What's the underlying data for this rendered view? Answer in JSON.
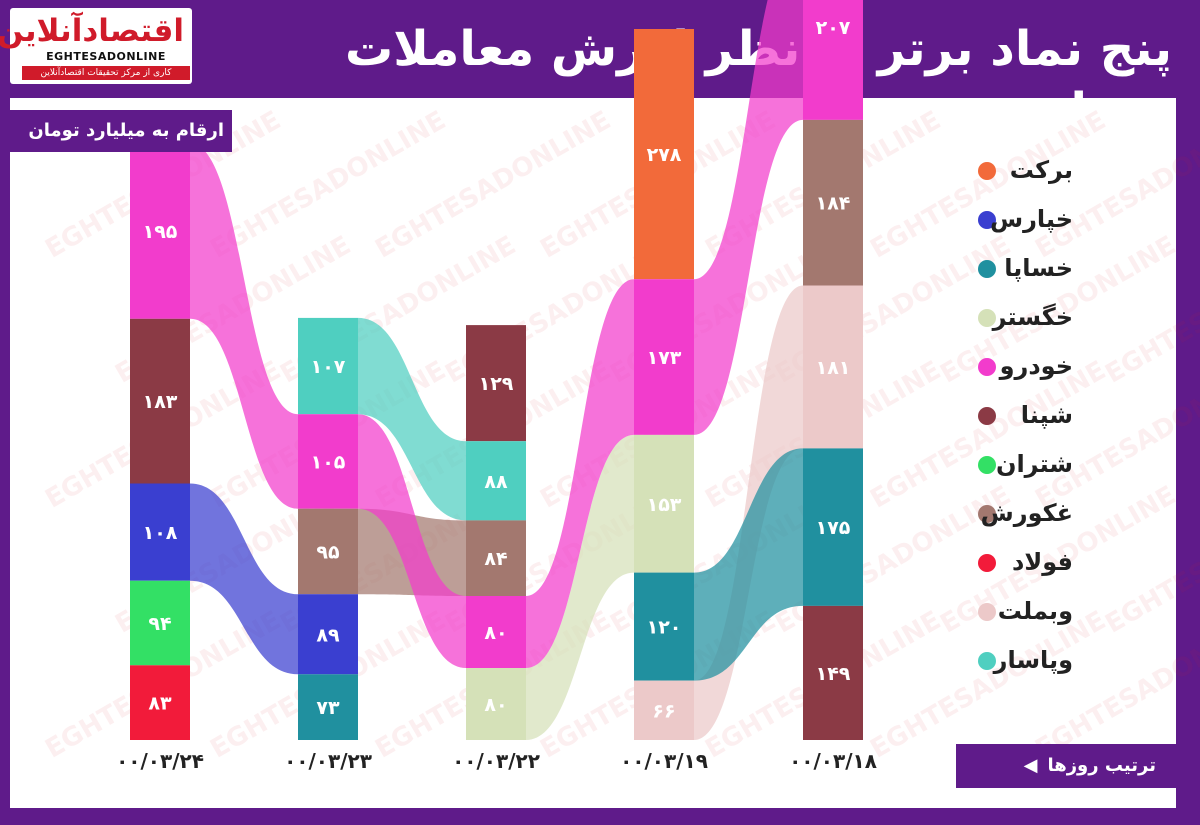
{
  "header": {
    "title": "پنج نماد برتر از نظر ارزش معاملات روزانه",
    "units_note": "ارقام به میلیارد تومان",
    "order_note": "ترتیب روزها"
  },
  "logo": {
    "name_fa": "اقتصادآنلاین",
    "name_en": "EGHTESADONLINE",
    "tagline": "کاری از مرکز تحقیقات اقتصادآنلاین"
  },
  "legend": [
    {
      "label": "برکت",
      "color": "#f26a3a"
    },
    {
      "label": "خپارس",
      "color": "#3a3fd0"
    },
    {
      "label": "خساپا",
      "color": "#20909f"
    },
    {
      "label": "خگستر",
      "color": "#d5e1b8"
    },
    {
      "label": "خودرو",
      "color": "#f23ccc"
    },
    {
      "label": "شپنا",
      "color": "#8b3a45"
    },
    {
      "label": "شتران",
      "color": "#33e065"
    },
    {
      "label": "غکورش",
      "color": "#a3786f"
    },
    {
      "label": "فولاد",
      "color": "#f21b3a"
    },
    {
      "label": "وبملت",
      "color": "#ecc9c9"
    },
    {
      "label": "وپاسار",
      "color": "#4fcfc0"
    }
  ],
  "chart_data": {
    "type": "bar",
    "subtype": "ranked stacked columns with flows",
    "unit": "ارقام به میلیارد تومان",
    "categories": [
      "۰۰/۰۳/۲۴",
      "۰۰/۰۳/۲۳",
      "۰۰/۰۳/۲۲",
      "۰۰/۰۳/۱۹",
      "۰۰/۰۳/۱۸"
    ],
    "days": [
      {
        "date": "۰۰/۰۳/۲۴",
        "stack": [
          {
            "symbol": "خودرو",
            "value": 195,
            "label": "۱۹۵"
          },
          {
            "symbol": "شپنا",
            "value": 183,
            "label": "۱۸۳"
          },
          {
            "symbol": "خپارس",
            "value": 108,
            "label": "۱۰۸"
          },
          {
            "symbol": "شتران",
            "value": 94,
            "label": "۹۴"
          },
          {
            "symbol": "فولاد",
            "value": 83,
            "label": "۸۳"
          }
        ]
      },
      {
        "date": "۰۰/۰۳/۲۳",
        "stack": [
          {
            "symbol": "وپاسار",
            "value": 107,
            "label": "۱۰۷"
          },
          {
            "symbol": "خودرو",
            "value": 105,
            "label": "۱۰۵"
          },
          {
            "symbol": "غکورش",
            "value": 95,
            "label": "۹۵"
          },
          {
            "symbol": "خپارس",
            "value": 89,
            "label": "۸۹"
          },
          {
            "symbol": "خساپا",
            "value": 73,
            "label": "۷۳"
          }
        ]
      },
      {
        "date": "۰۰/۰۳/۲۲",
        "stack": [
          {
            "symbol": "شپنا",
            "value": 129,
            "label": "۱۲۹"
          },
          {
            "symbol": "وپاسار",
            "value": 88,
            "label": "۸۸"
          },
          {
            "symbol": "غکورش",
            "value": 84,
            "label": "۸۴"
          },
          {
            "symbol": "خودرو",
            "value": 80,
            "label": "۸۰"
          },
          {
            "symbol": "خگستر",
            "value": 80,
            "label": "۸۰"
          }
        ]
      },
      {
        "date": "۰۰/۰۳/۱۹",
        "stack": [
          {
            "symbol": "برکت",
            "value": 278,
            "label": "۲۷۸"
          },
          {
            "symbol": "خودرو",
            "value": 173,
            "label": "۱۷۳"
          },
          {
            "symbol": "خگستر",
            "value": 153,
            "label": "۱۵۳"
          },
          {
            "symbol": "خساپا",
            "value": 120,
            "label": "۱۲۰"
          },
          {
            "symbol": "وبملت",
            "value": 66,
            "label": "۶۶"
          }
        ]
      },
      {
        "date": "۰۰/۰۳/۱۸",
        "stack": [
          {
            "symbol": "خودرو",
            "value": 207,
            "label": "۲۰۷"
          },
          {
            "symbol": "غکورش",
            "value": 184,
            "label": "۱۸۴"
          },
          {
            "symbol": "وبملت",
            "value": 181,
            "label": "۱۸۱"
          },
          {
            "symbol": "خساپا",
            "value": 175,
            "label": "۱۷۵"
          },
          {
            "symbol": "شپنا",
            "value": 149,
            "label": "۱۴۹"
          }
        ]
      }
    ]
  }
}
